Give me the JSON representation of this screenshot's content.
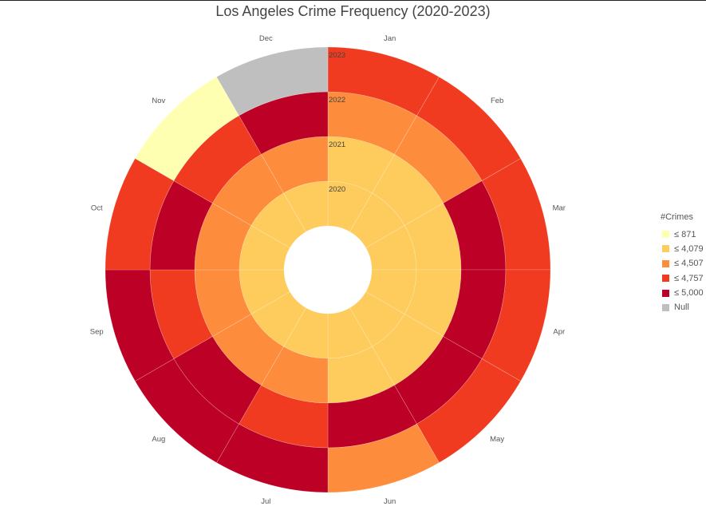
{
  "chart_data": {
    "type": "radial-heatmap",
    "title": "Los Angeles Crime Frequency (2020-2023)",
    "angular_categories": [
      "Jan",
      "Feb",
      "Mar",
      "Apr",
      "May",
      "Jun",
      "Jul",
      "Aug",
      "Sep",
      "Oct",
      "Nov",
      "Dec"
    ],
    "rings": [
      "2020",
      "2021",
      "2022",
      "2023"
    ],
    "legend": {
      "title": "#Crimes",
      "items": [
        {
          "label": "≤ 871",
          "color": "#ffffb2"
        },
        {
          "label": "≤ 4,079",
          "color": "#fecc5c"
        },
        {
          "label": "≤ 4,507",
          "color": "#fd8d3c"
        },
        {
          "label": "≤ 4,757",
          "color": "#f03b20"
        },
        {
          "label": "≤ 5,000",
          "color": "#bd0026"
        },
        {
          "label": "Null",
          "color": "#bfbfbf"
        }
      ]
    },
    "bins": {
      "2020": [
        "≤ 4,079",
        "≤ 4,079",
        "≤ 4,079",
        "≤ 4,079",
        "≤ 4,079",
        "≤ 4,079",
        "≤ 4,079",
        "≤ 4,079",
        "≤ 4,079",
        "≤ 4,079",
        "≤ 4,079",
        "≤ 4,079"
      ],
      "2021": [
        "≤ 4,079",
        "≤ 4,079",
        "≤ 4,079",
        "≤ 4,079",
        "≤ 4,079",
        "≤ 4,079",
        "≤ 4,507",
        "≤ 4,507",
        "≤ 4,507",
        "≤ 4,507",
        "≤ 4,507",
        "≤ 4,507"
      ],
      "2022": [
        "≤ 4,507",
        "≤ 4,507",
        "≤ 5,000",
        "≤ 5,000",
        "≤ 5,000",
        "≤ 5,000",
        "≤ 4,757",
        "≤ 5,000",
        "≤ 4,757",
        "≤ 5,000",
        "≤ 4,757",
        "≤ 5,000"
      ],
      "2023": [
        "≤ 4,757",
        "≤ 4,757",
        "≤ 4,757",
        "≤ 4,757",
        "≤ 4,757",
        "≤ 4,507",
        "≤ 5,000",
        "≤ 5,000",
        "≤ 5,000",
        "≤ 4,757",
        "≤ 871",
        "Null"
      ]
    }
  }
}
